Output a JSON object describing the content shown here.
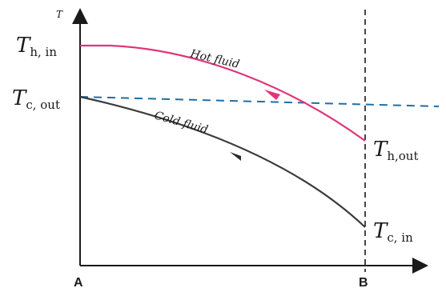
{
  "diagram": {
    "axis": {
      "y_label": "T"
    },
    "points": {
      "a": "A",
      "b": "B"
    },
    "labels": {
      "t_h_in": {
        "main": "T",
        "sub": "h, in"
      },
      "t_c_out": {
        "main": "T",
        "sub": "c, out"
      },
      "t_h_out": {
        "main": "T",
        "sub": "h,out"
      },
      "t_c_in": {
        "main": "T",
        "sub": "c, in"
      }
    },
    "curves": {
      "hot": {
        "label": "Hot fluid",
        "color": "#e0357a"
      },
      "cold": {
        "label": "Cold fluid",
        "color": "#3a3a3a"
      }
    },
    "reference_line_color": "#1f6fa6",
    "axis_color": "#1a1a1a"
  }
}
